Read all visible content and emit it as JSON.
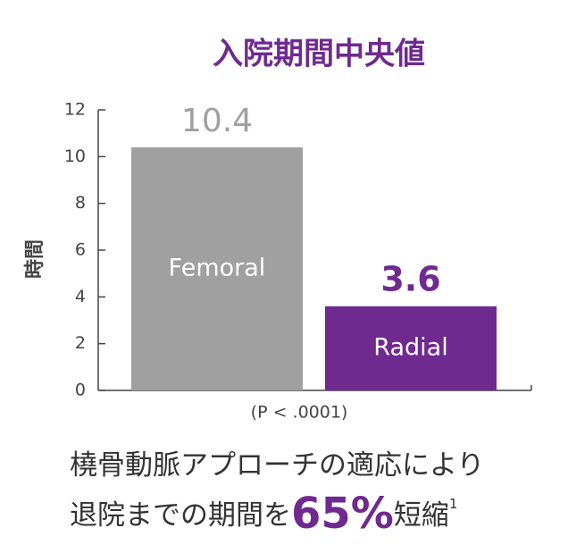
{
  "chart_data": {
    "type": "bar",
    "title": "入院期間中央値",
    "y_label": "時間",
    "categories": [
      "Femoral",
      "Radial"
    ],
    "values": [
      10.4,
      3.6
    ],
    "colors": [
      "#a0a0a0",
      "#6f2a8f"
    ],
    "value_label_colors": [
      "#a0a0a0",
      "#6f2a8f"
    ],
    "ylim": [
      0,
      12
    ],
    "yticks": [
      0,
      2,
      4,
      6,
      8,
      10,
      12
    ],
    "annotation": "(P < .0001)",
    "footnote": {
      "line1": "橈骨動脈アプローチの適応により",
      "line2_start": "退院までの期間を",
      "highlight": "65%",
      "line2_end": "短縮",
      "ref": "1"
    }
  }
}
